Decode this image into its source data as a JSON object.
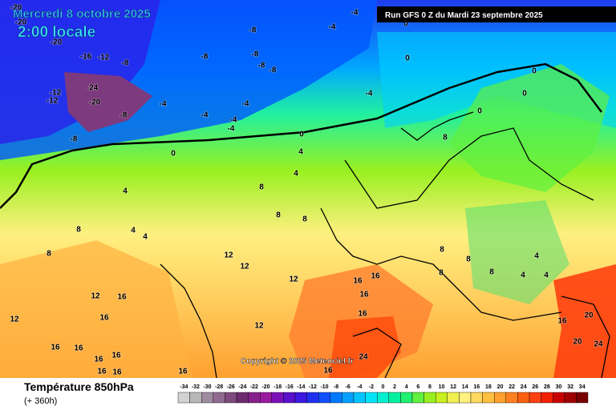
{
  "header": {
    "date": "Mercredi 8 octobre 2025",
    "time": "2:00 locale",
    "run": "Run GFS 0 Z du Mardi 23 septembre 2025"
  },
  "copyright": "Copyright © 2025 Meteociel.fr",
  "footer": {
    "title": "Température 850hPa",
    "lead": "(+ 360h)"
  },
  "scale": {
    "values": [
      -34,
      -32,
      -30,
      -28,
      -26,
      -24,
      -22,
      -20,
      -18,
      -16,
      -14,
      -12,
      -10,
      -8,
      -6,
      -4,
      -2,
      0,
      2,
      4,
      6,
      8,
      10,
      12,
      14,
      16,
      18,
      20,
      22,
      24,
      26,
      28,
      30,
      32,
      34
    ],
    "colors": [
      "#d2d2d2",
      "#b8b8b8",
      "#a08ca0",
      "#906a90",
      "#7e4a7e",
      "#6e2a6e",
      "#86208a",
      "#9a1aa0",
      "#7a10b8",
      "#5a10cc",
      "#3c18e0",
      "#2030f0",
      "#1050ff",
      "#0078ff",
      "#00a0ff",
      "#00c4ff",
      "#00e4f8",
      "#00f0d0",
      "#00f0a0",
      "#20f070",
      "#60f040",
      "#98f020",
      "#c8f020",
      "#f0f050",
      "#fff080",
      "#ffd860",
      "#ffc040",
      "#ffa030",
      "#ff8020",
      "#ff6010",
      "#ff4010",
      "#f02000",
      "#c80000",
      "#a00000",
      "#780000"
    ]
  },
  "contour_labels": [
    -20,
    -20,
    -20,
    -16,
    -12,
    -8,
    -24,
    -12,
    -12,
    -20,
    -8,
    -8,
    -4,
    -4,
    -4,
    -4,
    -4,
    -8,
    -8,
    -8,
    -8,
    -8,
    -4,
    -4,
    -4,
    0,
    0,
    0,
    0,
    0,
    0,
    0,
    4,
    4,
    4,
    4,
    4,
    8,
    8,
    8,
    8,
    8,
    8,
    12,
    12,
    12,
    12,
    12,
    12,
    16,
    16,
    16,
    16,
    16,
    16,
    16,
    16,
    16,
    16,
    16,
    16,
    16,
    16,
    16,
    20,
    20,
    24,
    24,
    8,
    8,
    8,
    8,
    4,
    4,
    4
  ]
}
